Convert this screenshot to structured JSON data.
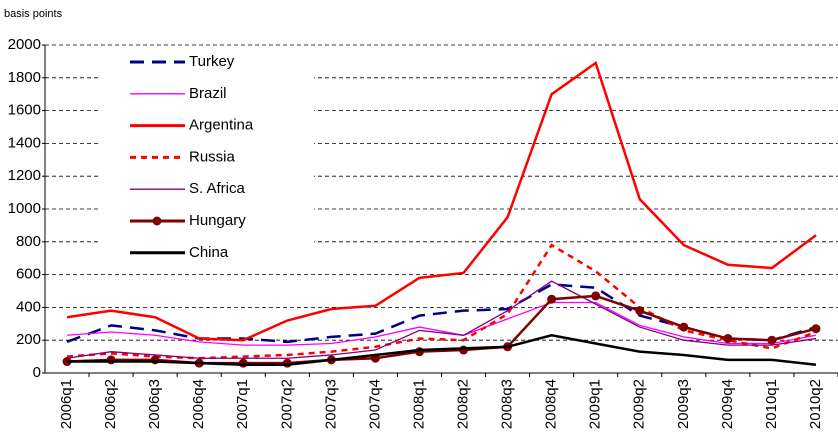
{
  "chart_data": {
    "type": "line",
    "y_label": "basis points",
    "categories": [
      "2006q1",
      "2006q2",
      "2006q3",
      "2006q4",
      "2007q1",
      "2007q2",
      "2007q3",
      "2007q4",
      "2008q1",
      "2008q2",
      "2008q3",
      "2008q4",
      "2009q1",
      "2009q2",
      "2009q3",
      "2009q4",
      "2010q1",
      "2010q2"
    ],
    "series": [
      {
        "name": "Turkey",
        "color": "#000080",
        "style": "dashed",
        "weight": "thick",
        "values": [
          190,
          290,
          260,
          210,
          210,
          190,
          220,
          240,
          350,
          380,
          390,
          540,
          520,
          350,
          280,
          210,
          200,
          280
        ]
      },
      {
        "name": "Brazil",
        "color": "#ff00ff",
        "style": "solid",
        "weight": "thin",
        "values": [
          230,
          250,
          230,
          190,
          170,
          170,
          180,
          220,
          280,
          230,
          330,
          430,
          430,
          290,
          220,
          180,
          180,
          230
        ]
      },
      {
        "name": "Argentina",
        "color": "#ff0000",
        "style": "solid",
        "weight": "thick",
        "values": [
          340,
          380,
          340,
          210,
          200,
          320,
          390,
          410,
          580,
          610,
          950,
          1700,
          1890,
          1060,
          780,
          660,
          640,
          840
        ]
      },
      {
        "name": "Russia",
        "color": "#ff0000",
        "style": "dotted",
        "weight": "thick",
        "values": [
          100,
          120,
          100,
          90,
          100,
          110,
          130,
          160,
          210,
          200,
          360,
          780,
          620,
          400,
          260,
          200,
          150,
          250
        ]
      },
      {
        "name": "S. Africa",
        "color": "#800080",
        "style": "solid",
        "weight": "thin",
        "values": [
          90,
          130,
          110,
          90,
          90,
          90,
          110,
          140,
          260,
          230,
          380,
          560,
          420,
          280,
          200,
          170,
          170,
          210
        ]
      },
      {
        "name": "Hungary",
        "color": "#800000",
        "style": "solid",
        "weight": "thick",
        "marker": "circle",
        "values": [
          70,
          80,
          80,
          60,
          60,
          60,
          80,
          90,
          130,
          140,
          160,
          450,
          470,
          380,
          280,
          210,
          200,
          270
        ]
      },
      {
        "name": "China",
        "color": "#000000",
        "style": "solid",
        "weight": "thick",
        "values": [
          70,
          70,
          70,
          60,
          50,
          50,
          80,
          110,
          140,
          150,
          160,
          230,
          180,
          130,
          110,
          80,
          80,
          50
        ]
      }
    ],
    "ylim": [
      0,
      2000
    ],
    "yticks": [
      0,
      200,
      400,
      600,
      800,
      1000,
      1200,
      1400,
      1600,
      1800,
      2000
    ],
    "grid": true
  }
}
